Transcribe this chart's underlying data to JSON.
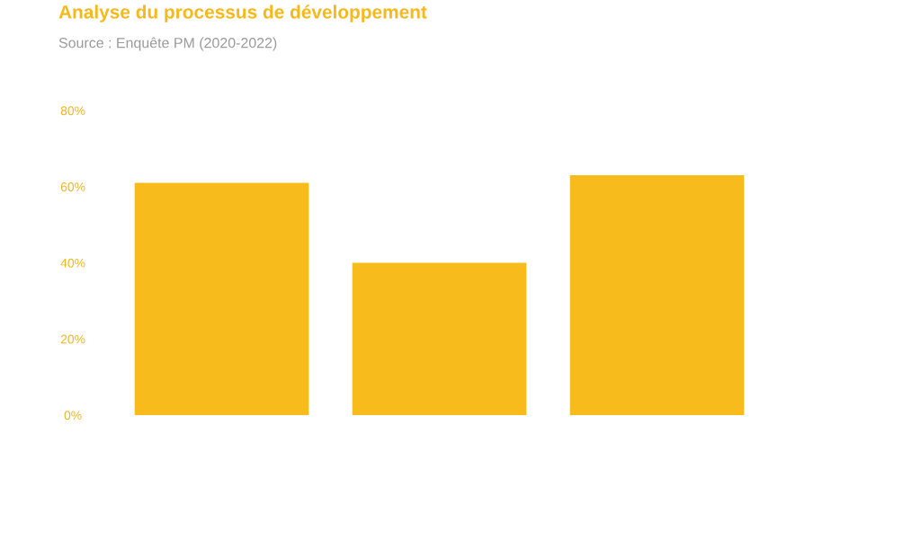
{
  "chart_data": {
    "type": "bar",
    "title": "Analyse du processus de développement",
    "annotations": [
      "Source : Enquête PM (2020-2022)"
    ],
    "categories": [
      null,
      null,
      null
    ],
    "values": [
      61,
      40,
      63
    ],
    "color": "#f8bb1c",
    "ylim": [
      0,
      80
    ],
    "yticks": [
      {
        "value": 0,
        "label": "0%"
      },
      {
        "value": 20,
        "label": "20%"
      },
      {
        "value": 40,
        "label": "40%"
      },
      {
        "value": 60,
        "label": "60%"
      },
      {
        "value": 80,
        "label": "80%"
      }
    ],
    "tick_labels": "y",
    "grid": false
  }
}
